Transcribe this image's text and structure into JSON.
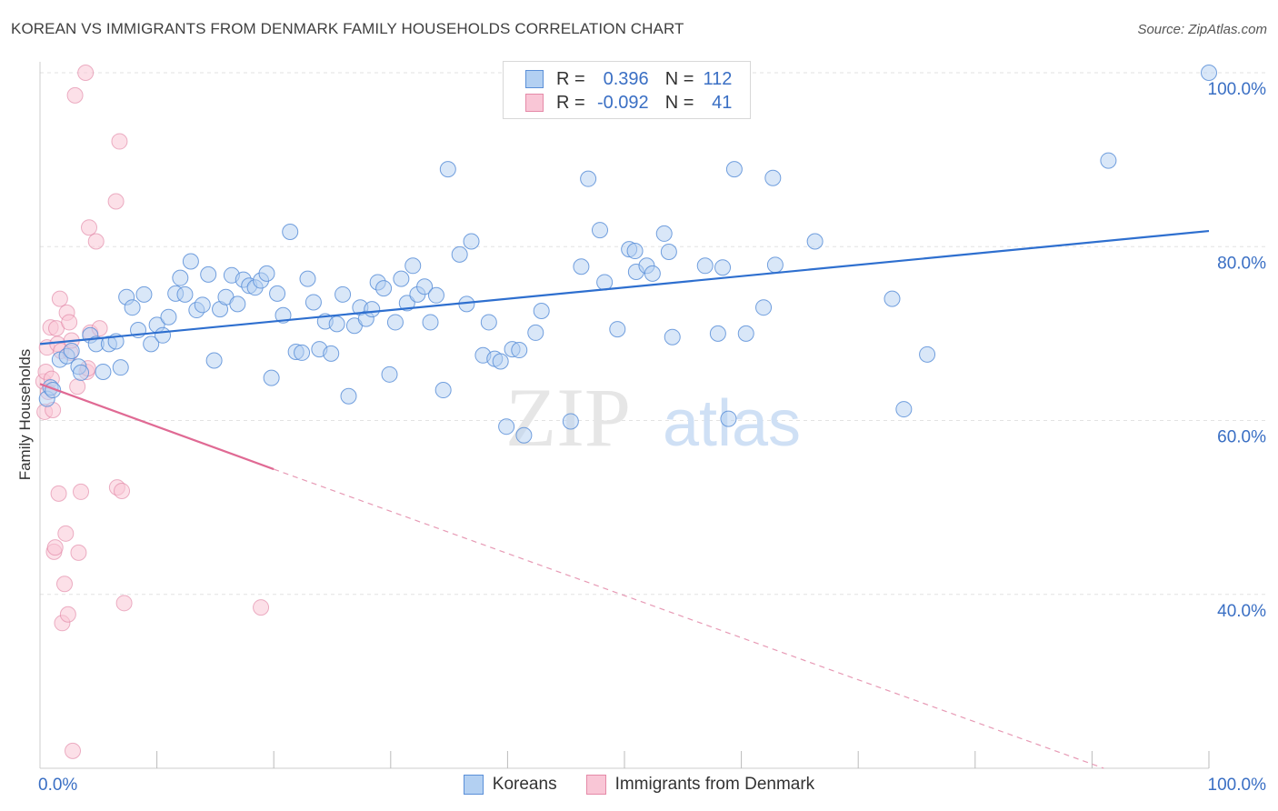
{
  "title": "KOREAN VS IMMIGRANTS FROM DENMARK FAMILY HOUSEHOLDS CORRELATION CHART",
  "source": "Source: ZipAtlas.com",
  "watermark": {
    "zip": "ZIP",
    "atlas": "atlas"
  },
  "legend": {
    "r_label": "R =",
    "n_label": "N =",
    "rows": [
      {
        "r": "0.396",
        "n": "112",
        "fill": "#b3d0f2",
        "stroke": "#5a8fd8"
      },
      {
        "r": "-0.092",
        "n": "41",
        "fill": "#f9c6d6",
        "stroke": "#e58aa8"
      }
    ]
  },
  "chart_data": {
    "type": "scatter",
    "title": "KOREAN VS IMMIGRANTS FROM DENMARK FAMILY HOUSEHOLDS CORRELATION CHART",
    "xlabel": "",
    "ylabel": "Family Households",
    "xlim": [
      0,
      100
    ],
    "ylim": [
      20,
      100
    ],
    "x_tick_labels": [
      "0.0%",
      "100.0%"
    ],
    "y_tick_labels": [
      "40.0%",
      "60.0%",
      "80.0%",
      "100.0%"
    ],
    "y_ticks": [
      40,
      60,
      80,
      100
    ],
    "grid": true,
    "legend_position": "bottom",
    "series": [
      {
        "name": "Koreans",
        "color": "#5a8fd8",
        "fill": "#b3d0f2",
        "trend": {
          "x0": 0,
          "y0": 68.8,
          "x1": 100,
          "y1": 81.8
        },
        "points": [
          [
            0.6,
            62.5
          ],
          [
            0.9,
            63.8
          ],
          [
            1.1,
            63.5
          ],
          [
            1.7,
            67.0
          ],
          [
            2.3,
            67.4
          ],
          [
            2.7,
            68.0
          ],
          [
            3.3,
            66.2
          ],
          [
            3.5,
            65.5
          ],
          [
            4.3,
            69.8
          ],
          [
            4.8,
            68.8
          ],
          [
            5.4,
            65.6
          ],
          [
            5.9,
            68.8
          ],
          [
            6.5,
            69.1
          ],
          [
            6.9,
            66.1
          ],
          [
            7.4,
            74.2
          ],
          [
            7.9,
            73.0
          ],
          [
            8.4,
            70.4
          ],
          [
            8.9,
            74.5
          ],
          [
            9.5,
            68.8
          ],
          [
            10.0,
            71.0
          ],
          [
            10.5,
            69.8
          ],
          [
            11.0,
            71.9
          ],
          [
            11.6,
            74.6
          ],
          [
            12.0,
            76.4
          ],
          [
            12.4,
            74.5
          ],
          [
            12.9,
            78.3
          ],
          [
            13.4,
            72.7
          ],
          [
            13.9,
            73.3
          ],
          [
            14.4,
            76.8
          ],
          [
            14.9,
            66.9
          ],
          [
            15.4,
            72.8
          ],
          [
            15.9,
            74.2
          ],
          [
            16.4,
            76.7
          ],
          [
            16.9,
            73.4
          ],
          [
            17.4,
            76.2
          ],
          [
            17.9,
            75.5
          ],
          [
            18.4,
            75.3
          ],
          [
            18.9,
            76.1
          ],
          [
            19.4,
            76.9
          ],
          [
            19.8,
            64.9
          ],
          [
            20.3,
            74.6
          ],
          [
            20.8,
            72.1
          ],
          [
            21.4,
            81.7
          ],
          [
            21.9,
            67.9
          ],
          [
            22.4,
            67.8
          ],
          [
            22.9,
            76.3
          ],
          [
            23.4,
            73.6
          ],
          [
            23.9,
            68.2
          ],
          [
            24.4,
            71.4
          ],
          [
            24.9,
            67.7
          ],
          [
            25.4,
            71.1
          ],
          [
            25.9,
            74.5
          ],
          [
            26.4,
            62.8
          ],
          [
            26.9,
            70.9
          ],
          [
            27.4,
            73.0
          ],
          [
            27.9,
            71.7
          ],
          [
            28.4,
            72.8
          ],
          [
            28.9,
            75.9
          ],
          [
            29.4,
            75.2
          ],
          [
            29.9,
            65.3
          ],
          [
            30.4,
            71.3
          ],
          [
            30.9,
            76.3
          ],
          [
            31.4,
            73.5
          ],
          [
            31.9,
            77.8
          ],
          [
            32.3,
            74.5
          ],
          [
            32.9,
            75.4
          ],
          [
            33.4,
            71.3
          ],
          [
            33.9,
            74.4
          ],
          [
            34.5,
            63.5
          ],
          [
            34.9,
            88.9
          ],
          [
            35.9,
            79.1
          ],
          [
            36.5,
            73.4
          ],
          [
            36.9,
            80.6
          ],
          [
            37.9,
            67.5
          ],
          [
            38.4,
            71.3
          ],
          [
            38.9,
            67.1
          ],
          [
            39.4,
            66.8
          ],
          [
            39.9,
            59.3
          ],
          [
            40.4,
            68.2
          ],
          [
            41.0,
            68.1
          ],
          [
            41.4,
            58.3
          ],
          [
            42.4,
            70.1
          ],
          [
            42.9,
            72.6
          ],
          [
            45.4,
            59.9
          ],
          [
            46.3,
            77.7
          ],
          [
            46.9,
            87.8
          ],
          [
            47.9,
            81.9
          ],
          [
            48.3,
            75.9
          ],
          [
            49.4,
            70.5
          ],
          [
            50.4,
            79.7
          ],
          [
            50.9,
            79.5
          ],
          [
            51.0,
            77.1
          ],
          [
            51.9,
            77.8
          ],
          [
            52.4,
            76.9
          ],
          [
            53.4,
            81.5
          ],
          [
            53.8,
            79.4
          ],
          [
            54.1,
            69.6
          ],
          [
            56.9,
            77.8
          ],
          [
            58.0,
            70.0
          ],
          [
            58.4,
            77.6
          ],
          [
            58.9,
            60.2
          ],
          [
            59.4,
            88.9
          ],
          [
            60.4,
            70.0
          ],
          [
            61.9,
            73.0
          ],
          [
            62.7,
            87.9
          ],
          [
            62.9,
            77.9
          ],
          [
            66.3,
            80.6
          ],
          [
            72.9,
            74.0
          ],
          [
            73.9,
            61.3
          ],
          [
            75.9,
            67.6
          ],
          [
            91.4,
            89.9
          ],
          [
            100.0,
            100.0
          ]
        ]
      },
      {
        "name": "Immigrants from Denmark",
        "color": "#e07fa0",
        "fill": "#f9c6d6",
        "trend": {
          "x0": 0,
          "y0": 64.2,
          "x1": 20,
          "y1": 54.4
        },
        "trend_dashed": {
          "x0": 20,
          "y0": 54.4,
          "x1": 91,
          "y1": 20.0
        },
        "points": [
          [
            0.3,
            64.5
          ],
          [
            0.4,
            61.0
          ],
          [
            0.5,
            65.6
          ],
          [
            0.6,
            68.4
          ],
          [
            0.7,
            63.3
          ],
          [
            0.9,
            70.7
          ],
          [
            1.0,
            64.8
          ],
          [
            1.1,
            61.2
          ],
          [
            1.2,
            44.9
          ],
          [
            1.3,
            45.4
          ],
          [
            1.4,
            70.6
          ],
          [
            1.5,
            68.8
          ],
          [
            1.6,
            51.6
          ],
          [
            1.7,
            74.0
          ],
          [
            1.8,
            68.0
          ],
          [
            1.9,
            36.7
          ],
          [
            2.1,
            41.2
          ],
          [
            2.2,
            47.0
          ],
          [
            2.3,
            72.4
          ],
          [
            2.4,
            37.7
          ],
          [
            2.5,
            71.3
          ],
          [
            2.6,
            67.8
          ],
          [
            2.7,
            69.2
          ],
          [
            2.8,
            22.0
          ],
          [
            3.0,
            97.4
          ],
          [
            3.2,
            63.9
          ],
          [
            3.3,
            44.8
          ],
          [
            3.5,
            51.8
          ],
          [
            3.9,
            100.0
          ],
          [
            4.0,
            65.6
          ],
          [
            4.1,
            66.0
          ],
          [
            4.2,
            82.2
          ],
          [
            4.3,
            70.1
          ],
          [
            4.8,
            80.6
          ],
          [
            5.1,
            70.6
          ],
          [
            6.5,
            85.2
          ],
          [
            6.6,
            52.3
          ],
          [
            6.8,
            92.1
          ],
          [
            7.2,
            39.0
          ],
          [
            18.9,
            38.5
          ],
          [
            7.0,
            51.9
          ]
        ]
      }
    ]
  }
}
